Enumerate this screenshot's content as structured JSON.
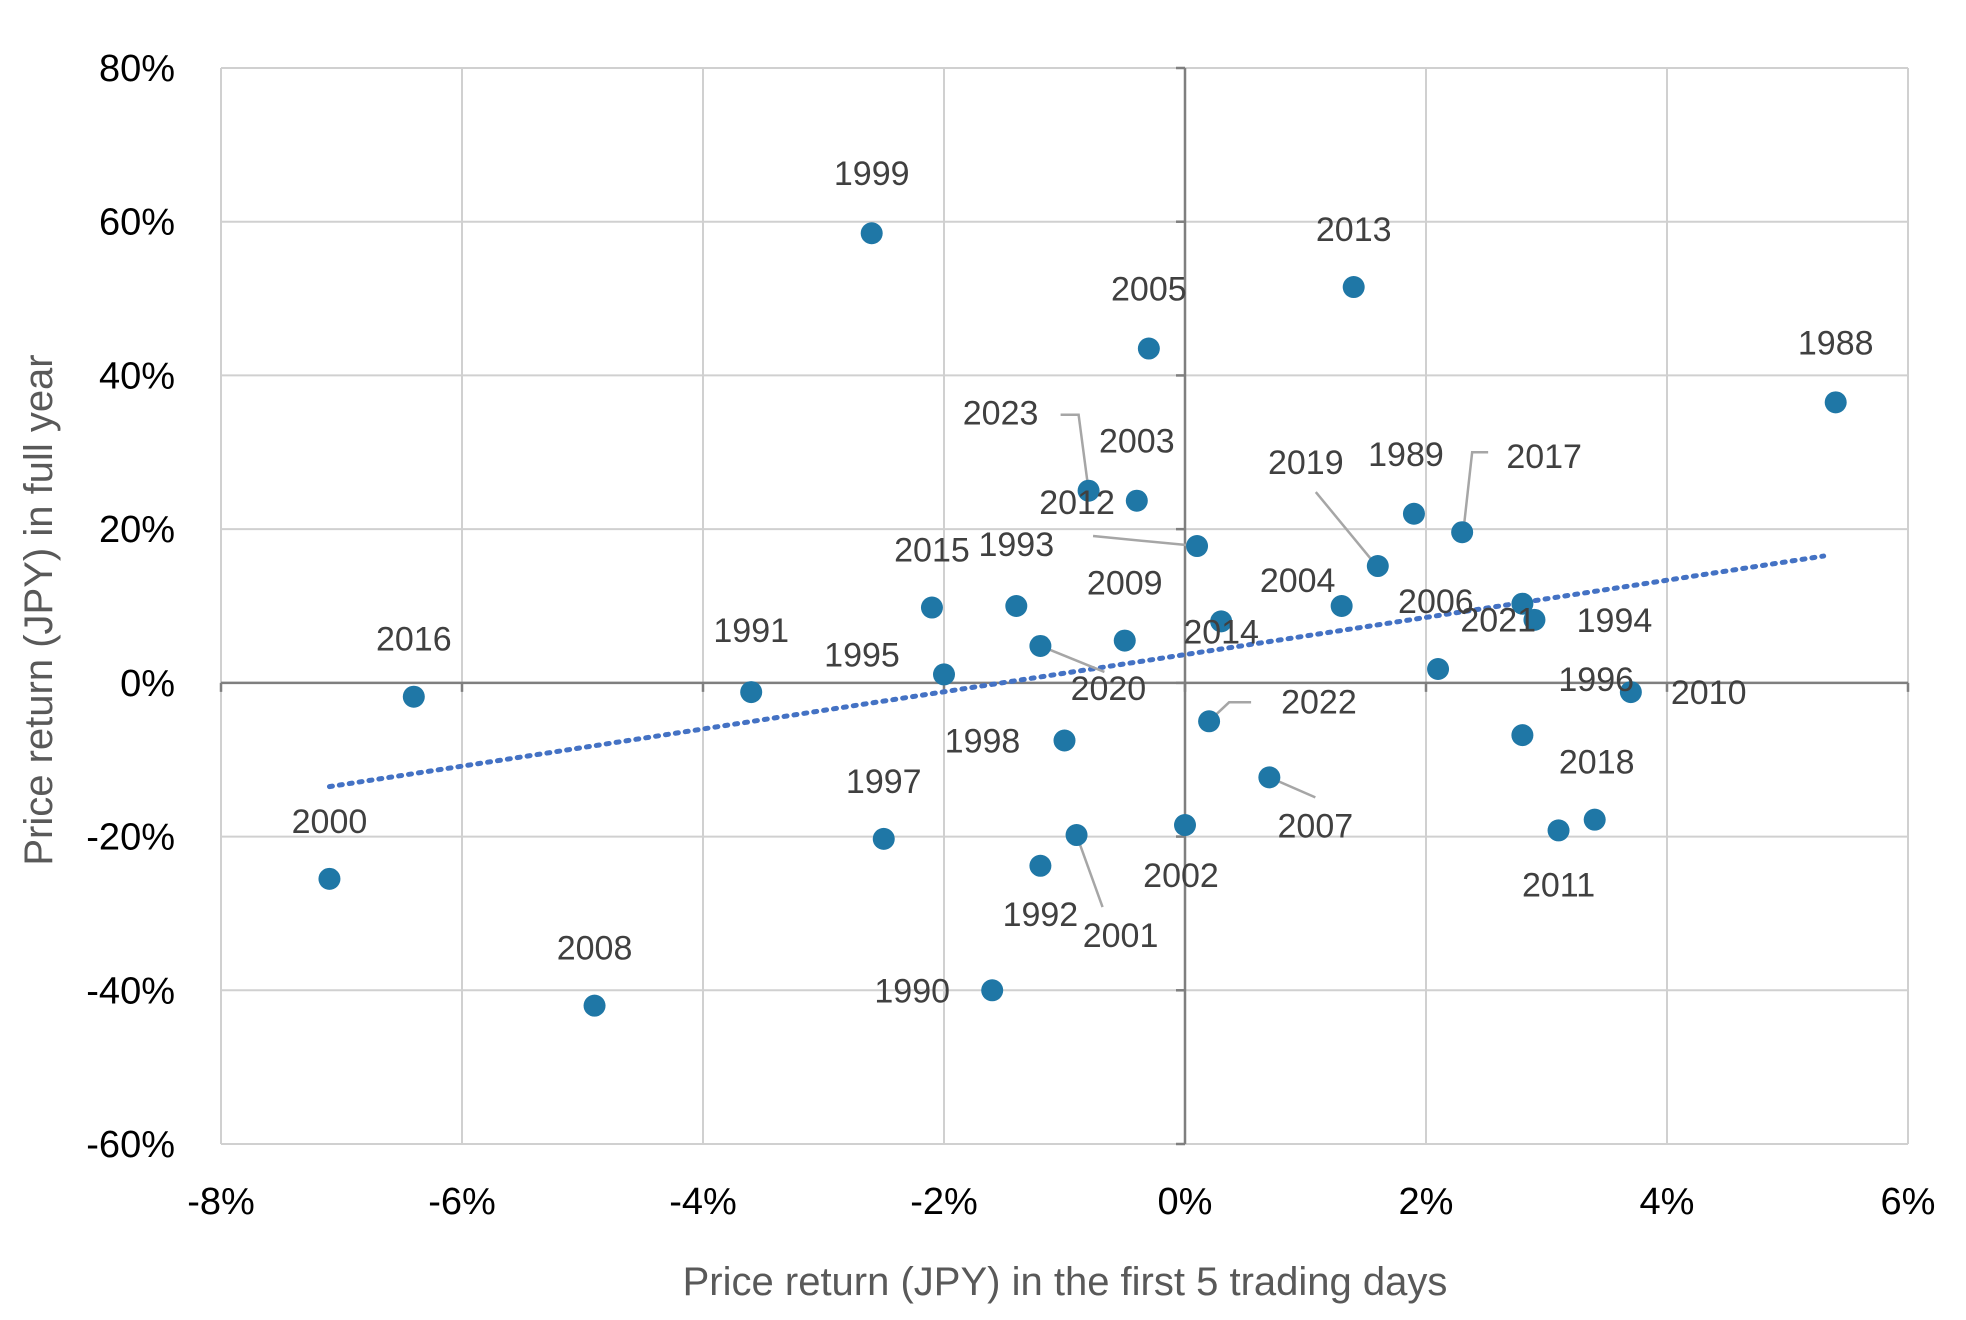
{
  "chart_data": {
    "type": "scatter",
    "title": "",
    "xlabel": "Price return (JPY) in the first 5 trading days",
    "ylabel": "Price return (JPY) in full year",
    "xlim": [
      -8,
      6
    ],
    "ylim": [
      -60,
      80
    ],
    "x_ticks": [
      -8,
      -6,
      -4,
      -2,
      0,
      2,
      4,
      6
    ],
    "y_ticks": [
      -60,
      -40,
      -20,
      0,
      20,
      40,
      60,
      80
    ],
    "x_tick_labels": [
      "-8%",
      "-6%",
      "-4%",
      "-2%",
      "0%",
      "2%",
      "4%",
      "6%"
    ],
    "y_tick_labels": [
      "-60%",
      "-40%",
      "-20%",
      "0%",
      "20%",
      "40%",
      "60%",
      "80%"
    ],
    "grid": true,
    "legend": "none",
    "colors": {
      "points": "#1f77a6",
      "trendline": "#4472c4"
    },
    "trendline": {
      "style": "dotted",
      "x": [
        -7.1,
        5.3
      ],
      "y": [
        -13.5,
        16.5
      ]
    },
    "points": [
      {
        "label": "1988",
        "x": 5.4,
        "y": 36.5
      },
      {
        "label": "1989",
        "x": 1.9,
        "y": 22.0
      },
      {
        "label": "1990",
        "x": -1.6,
        "y": -40.0
      },
      {
        "label": "1991",
        "x": -3.6,
        "y": -1.2
      },
      {
        "label": "1992",
        "x": -1.2,
        "y": -23.8
      },
      {
        "label": "1993",
        "x": -1.4,
        "y": 10.0
      },
      {
        "label": "1994",
        "x": 2.9,
        "y": 8.2
      },
      {
        "label": "1995",
        "x": -2.0,
        "y": 1.1
      },
      {
        "label": "1996",
        "x": 2.8,
        "y": -6.8
      },
      {
        "label": "1997",
        "x": -2.5,
        "y": -20.3
      },
      {
        "label": "1998",
        "x": -1.0,
        "y": -7.5
      },
      {
        "label": "1999",
        "x": -2.6,
        "y": 58.5
      },
      {
        "label": "2000",
        "x": -7.1,
        "y": -25.5
      },
      {
        "label": "2001",
        "x": -0.9,
        "y": -19.8
      },
      {
        "label": "2002",
        "x": 0.0,
        "y": -18.5
      },
      {
        "label": "2003",
        "x": -0.4,
        "y": 23.7
      },
      {
        "label": "2004",
        "x": 1.3,
        "y": 10.0
      },
      {
        "label": "2005",
        "x": -0.3,
        "y": 43.5
      },
      {
        "label": "2006",
        "x": 2.1,
        "y": 1.8
      },
      {
        "label": "2007",
        "x": 0.7,
        "y": -12.3
      },
      {
        "label": "2008",
        "x": -4.9,
        "y": -42.0
      },
      {
        "label": "2009",
        "x": -0.5,
        "y": 5.5
      },
      {
        "label": "2010",
        "x": 3.7,
        "y": -1.2
      },
      {
        "label": "2011",
        "x": 3.1,
        "y": -19.2
      },
      {
        "label": "2012",
        "x": 0.1,
        "y": 17.8
      },
      {
        "label": "2013",
        "x": 1.4,
        "y": 51.5
      },
      {
        "label": "2014",
        "x": 0.3,
        "y": 8.0
      },
      {
        "label": "2015",
        "x": -2.1,
        "y": 9.8
      },
      {
        "label": "2016",
        "x": -6.4,
        "y": -1.8
      },
      {
        "label": "2017",
        "x": 2.3,
        "y": 19.6
      },
      {
        "label": "2018",
        "x": 3.4,
        "y": -17.8
      },
      {
        "label": "2019",
        "x": 1.6,
        "y": 15.2
      },
      {
        "label": "2020",
        "x": -1.2,
        "y": 4.8
      },
      {
        "label": "2021",
        "x": 2.8,
        "y": 10.3
      },
      {
        "label": "2022",
        "x": 0.2,
        "y": -5.0
      },
      {
        "label": "2023",
        "x": -0.8,
        "y": 25.0
      }
    ]
  }
}
